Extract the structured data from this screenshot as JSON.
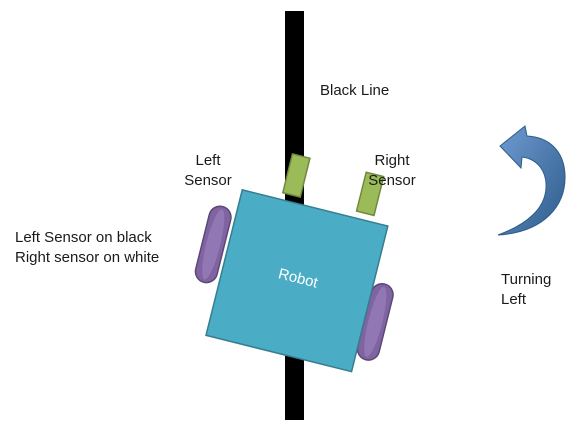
{
  "labels": {
    "black_line": "Black Line",
    "left_sensor": [
      "Left",
      "Sensor"
    ],
    "right_sensor": [
      "Right",
      "Sensor"
    ],
    "status": [
      "Left Sensor on black",
      "Right sensor on white"
    ],
    "robot": "Robot",
    "turning": [
      "Turning",
      "Left"
    ]
  },
  "colors": {
    "line": "#000000",
    "robot_body": "#4BACC6",
    "robot_border": "#357D91",
    "sensor": "#9BBB59",
    "sensor_border": "#71893F",
    "wheel": "#8064A2",
    "wheel_border": "#5C4776",
    "arrow": "#4F81BD",
    "arrow_dark": "#2E5C8A"
  },
  "icons": {
    "turn_arrow": "curved-arrow-left-icon"
  }
}
